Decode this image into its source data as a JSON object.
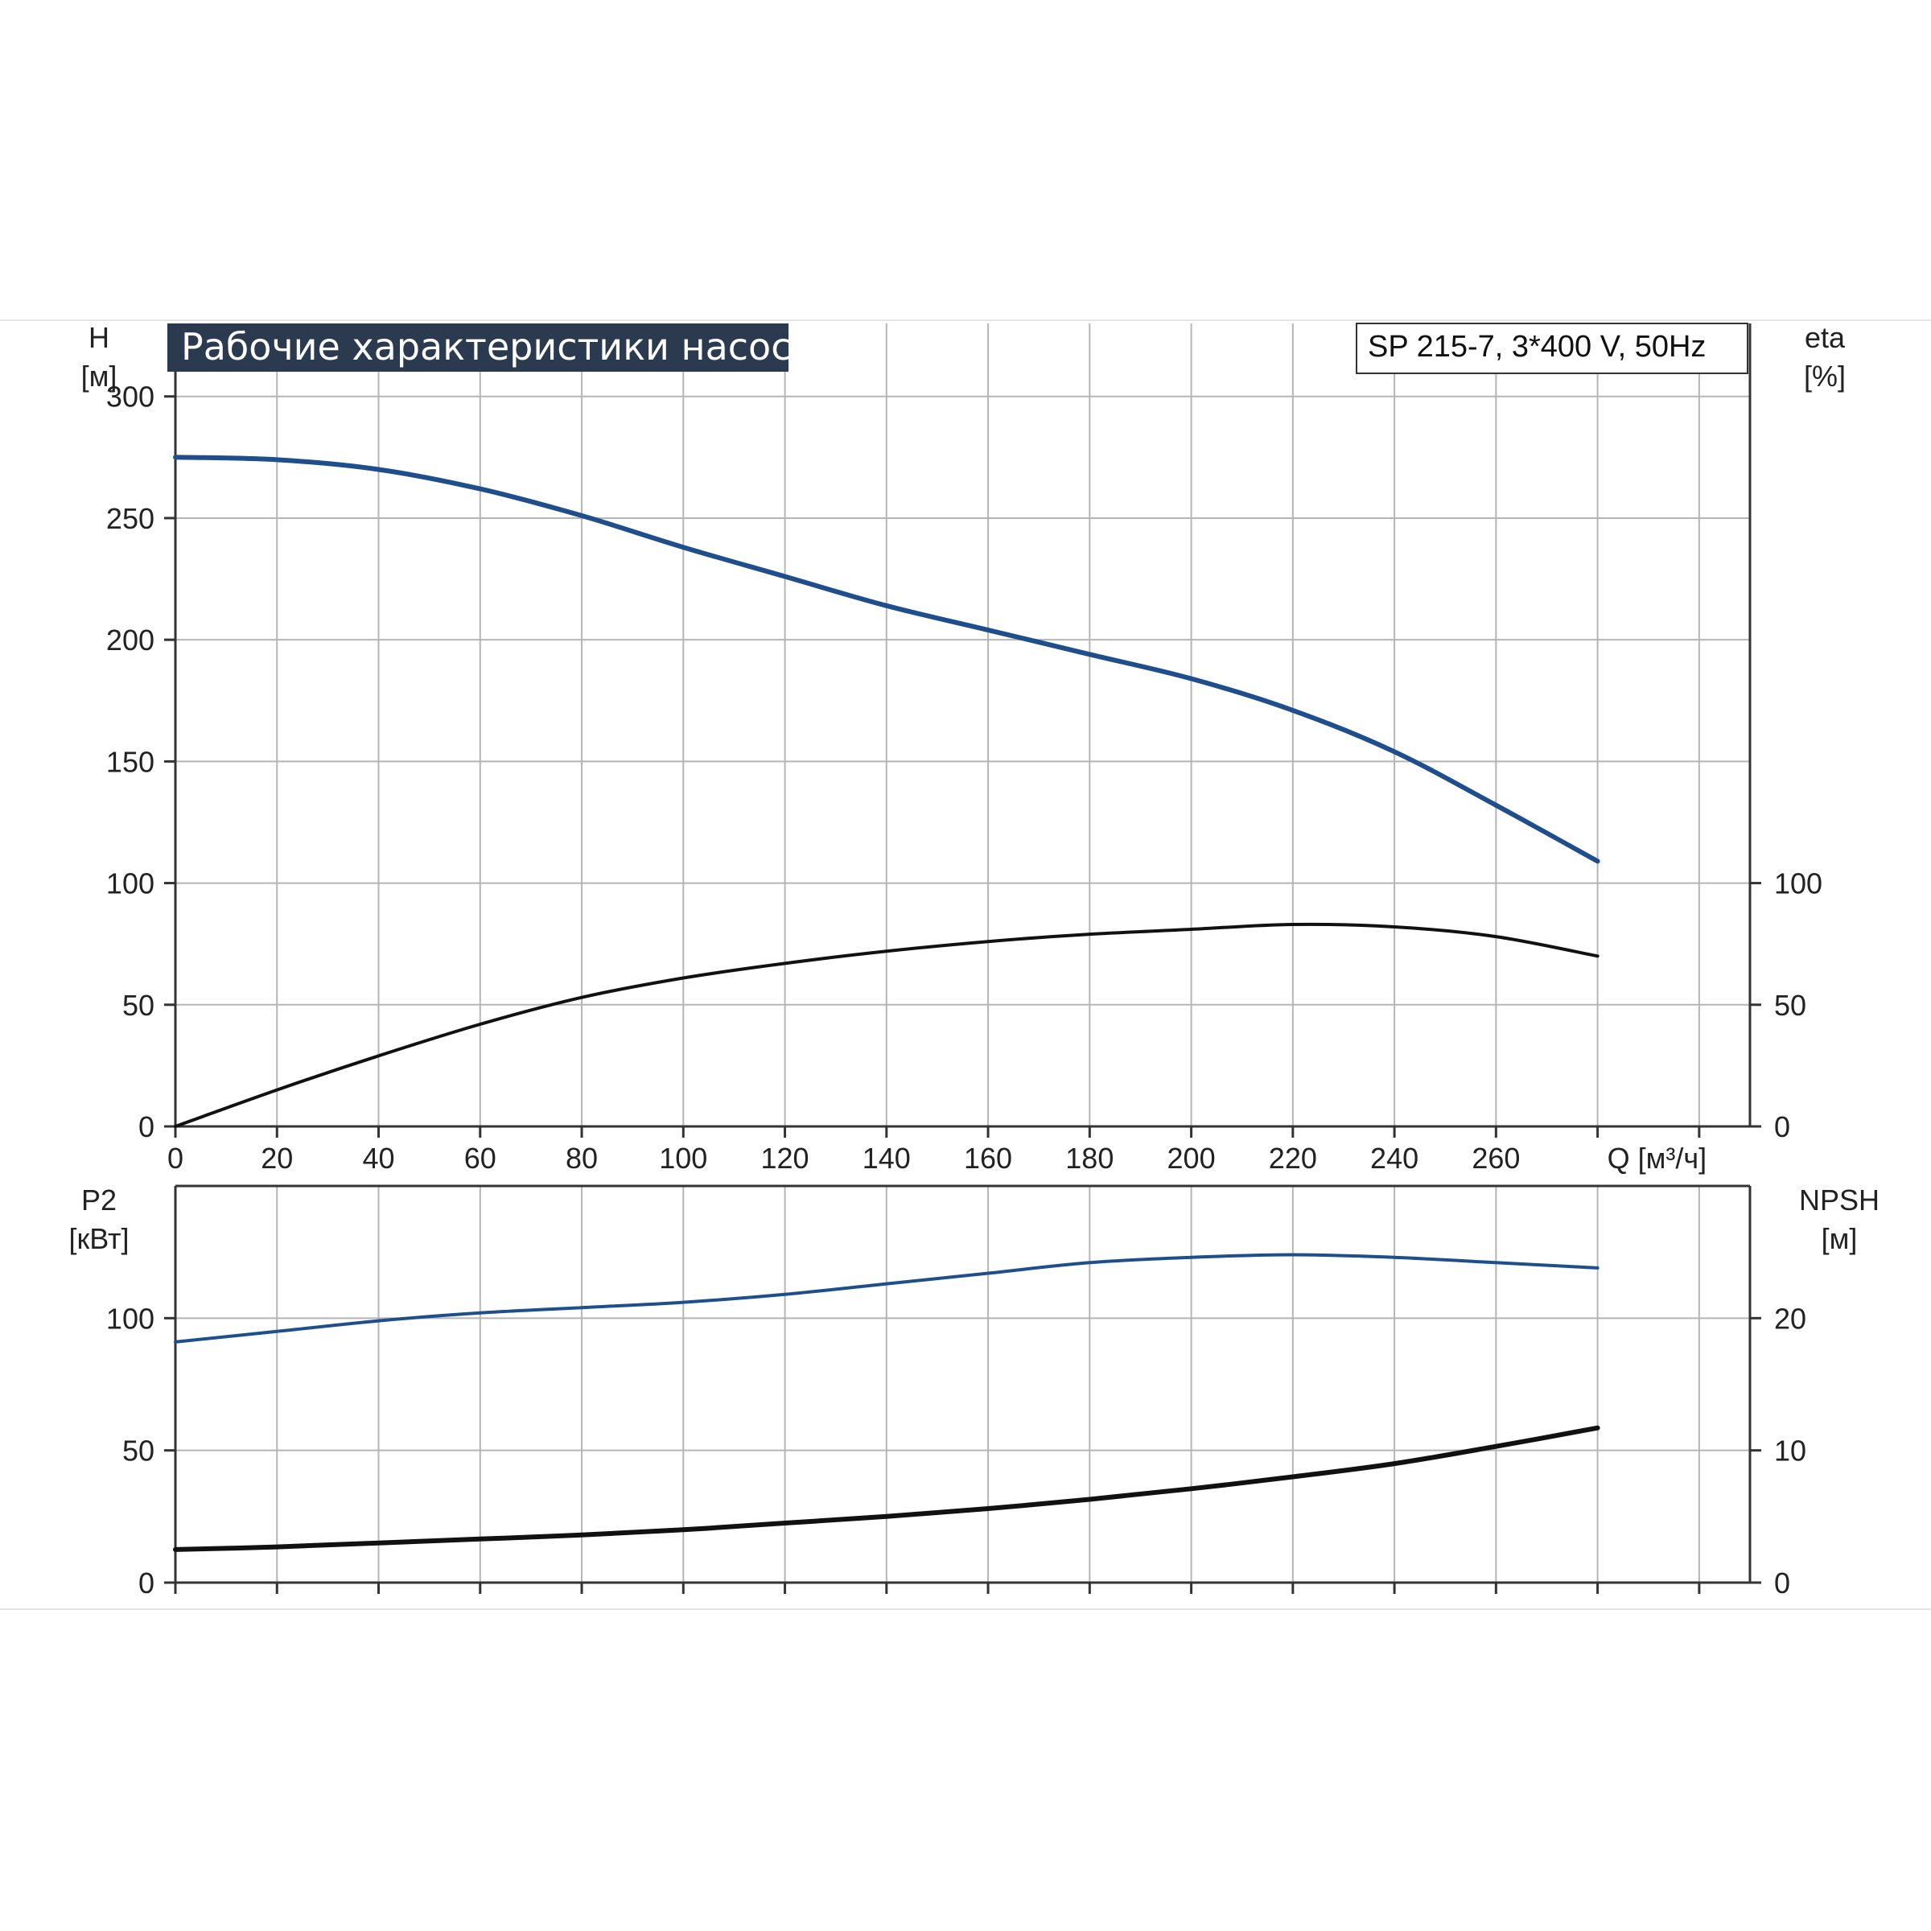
{
  "title": "Рабочие характеристики насоса",
  "model": "SP 215-7, 3*400 V, 50Hz",
  "colors": {
    "blue": "#1f4e8c",
    "black": "#111111",
    "grid": "#b5b5b5",
    "title_bg": "#2b3a4e"
  },
  "chart_data": [
    {
      "type": "line",
      "panel": "top",
      "x_label": "Q [м³/ч]",
      "x_ticks": [
        0,
        20,
        40,
        60,
        80,
        100,
        120,
        140,
        160,
        180,
        200,
        220,
        240,
        260
      ],
      "xlim": [
        0,
        310
      ],
      "left_axis": {
        "label": "H",
        "unit": "[м]",
        "ticks": [
          0,
          50,
          100,
          150,
          200,
          250,
          300
        ],
        "ylim": [
          0,
          330
        ]
      },
      "right_axis": {
        "label": "eta",
        "unit": "[%]",
        "ticks": [
          0,
          50,
          100
        ],
        "ylim": [
          0,
          330
        ]
      },
      "series": [
        {
          "key": "head",
          "axis": "left",
          "color": "blue",
          "x": [
            0,
            20,
            40,
            60,
            80,
            100,
            120,
            140,
            160,
            180,
            200,
            220,
            240,
            260,
            280
          ],
          "y": [
            275,
            274,
            270,
            262,
            251,
            238,
            226,
            214,
            204,
            194,
            184,
            171,
            154,
            132,
            109
          ]
        },
        {
          "key": "efficiency",
          "axis": "right",
          "color": "black",
          "x": [
            0,
            20,
            40,
            60,
            80,
            100,
            120,
            140,
            160,
            180,
            200,
            220,
            240,
            260,
            280
          ],
          "y": [
            0,
            15,
            29,
            42,
            53,
            61,
            67,
            72,
            76,
            79,
            81,
            83,
            82,
            78,
            70
          ]
        }
      ]
    },
    {
      "type": "line",
      "panel": "bottom",
      "xlim": [
        0,
        310
      ],
      "left_axis": {
        "label": "P2",
        "unit": "[кВт]",
        "ticks": [
          0,
          50,
          100
        ],
        "ylim": [
          0,
          150
        ]
      },
      "right_axis": {
        "label": "NPSH",
        "unit": "[м]",
        "ticks": [
          0,
          10,
          20
        ],
        "ylim": [
          0,
          30
        ]
      },
      "series": [
        {
          "key": "power",
          "axis": "left",
          "color": "blue",
          "x": [
            0,
            20,
            40,
            60,
            80,
            100,
            120,
            140,
            160,
            180,
            200,
            220,
            240,
            260,
            280
          ],
          "y": [
            91,
            95,
            99,
            102,
            104,
            106,
            109,
            113,
            117,
            121,
            123,
            124,
            123,
            121,
            119
          ]
        },
        {
          "key": "npsh",
          "axis": "right",
          "color": "black",
          "x": [
            0,
            20,
            40,
            60,
            80,
            100,
            120,
            140,
            160,
            180,
            200,
            220,
            240,
            260,
            280
          ],
          "y": [
            2.5,
            2.7,
            3.0,
            3.3,
            3.6,
            4.0,
            4.5,
            5.0,
            5.6,
            6.3,
            7.1,
            8.0,
            9.0,
            10.3,
            11.7
          ]
        }
      ]
    }
  ]
}
